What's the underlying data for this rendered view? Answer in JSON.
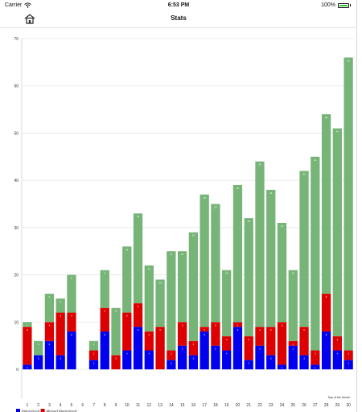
{
  "status_bar": {
    "carrier": "Carrier",
    "time": "6:53 PM",
    "battery_percent": "100%",
    "battery_level": 1.0
  },
  "nav": {
    "title": "Stats",
    "home_icon": "home-icon"
  },
  "colors": {
    "memorized": "#0000ee",
    "missed": "#dd0000",
    "other": "#77b477"
  },
  "chart_data": {
    "type": "bar",
    "stacked": true,
    "xlabel": "Day of the Month",
    "ylabel": "",
    "ylim": [
      0,
      70
    ],
    "yticks": [
      0,
      10,
      20,
      30,
      40,
      50,
      60,
      70
    ],
    "grid": true,
    "legend_placement": "bottom-left",
    "categories": [
      1,
      2,
      3,
      4,
      5,
      6,
      7,
      8,
      9,
      10,
      11,
      12,
      13,
      14,
      15,
      16,
      17,
      18,
      19,
      20,
      21,
      22,
      23,
      24,
      25,
      26,
      27,
      28,
      29,
      30
    ],
    "series": [
      {
        "name": "Memorized",
        "color": "#0000ee",
        "values": [
          1,
          3,
          6,
          3,
          8,
          0,
          2,
          8,
          0,
          4,
          9,
          4,
          0,
          2,
          5,
          3,
          8,
          5,
          4,
          9,
          2,
          5,
          3,
          1,
          5,
          3,
          1,
          8,
          4,
          2
        ]
      },
      {
        "name": "Missed Memorized",
        "color": "#dd0000",
        "values": [
          8,
          0,
          4,
          9,
          4,
          0,
          2,
          5,
          3,
          8,
          5,
          4,
          9,
          2,
          5,
          3,
          1,
          5,
          3,
          1,
          5,
          4,
          6,
          9,
          1,
          6,
          3,
          8,
          3,
          2
        ]
      },
      {
        "name": "",
        "color": "#77b477",
        "values": [
          1,
          3,
          6,
          3,
          8,
          0,
          2,
          8,
          10,
          14,
          19,
          14,
          10,
          21,
          15,
          23,
          28,
          25,
          14,
          29,
          25,
          35,
          29,
          21,
          15,
          33,
          41,
          38,
          44,
          62
        ]
      }
    ]
  }
}
